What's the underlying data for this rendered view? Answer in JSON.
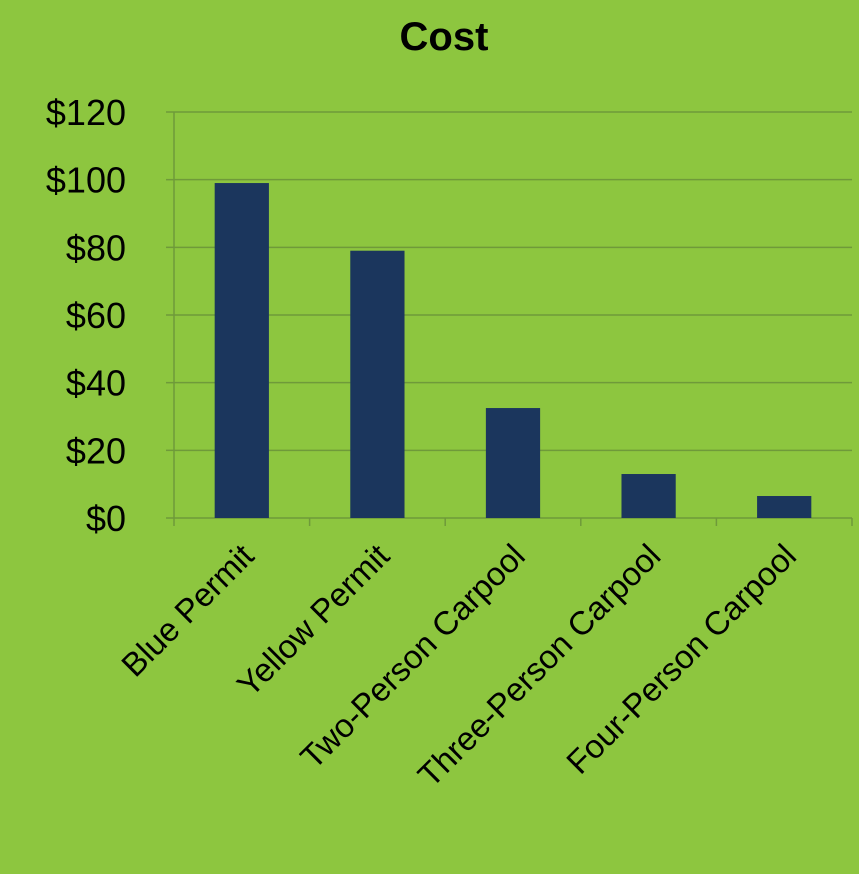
{
  "theme": {
    "background": "#8dc63f",
    "bar_color": "#1b365d",
    "grid_color": "#6f9a3a",
    "text_color": "#000000"
  },
  "chart_data": {
    "type": "bar",
    "title": "Cost",
    "categories": [
      "Blue Permit",
      "Yellow Permit",
      "Two-Person Carpool",
      "Three-Person Carpool",
      "Four-Person Carpool"
    ],
    "values": [
      99,
      79,
      32.5,
      13,
      6.5
    ],
    "ylim": [
      0,
      120
    ],
    "yticks": [
      0,
      20,
      40,
      60,
      80,
      100,
      120
    ],
    "ytick_labels": [
      "$0",
      "$20",
      "$40",
      "$60",
      "$80",
      "$100",
      "$120"
    ],
    "grid": true,
    "legend": "none"
  }
}
